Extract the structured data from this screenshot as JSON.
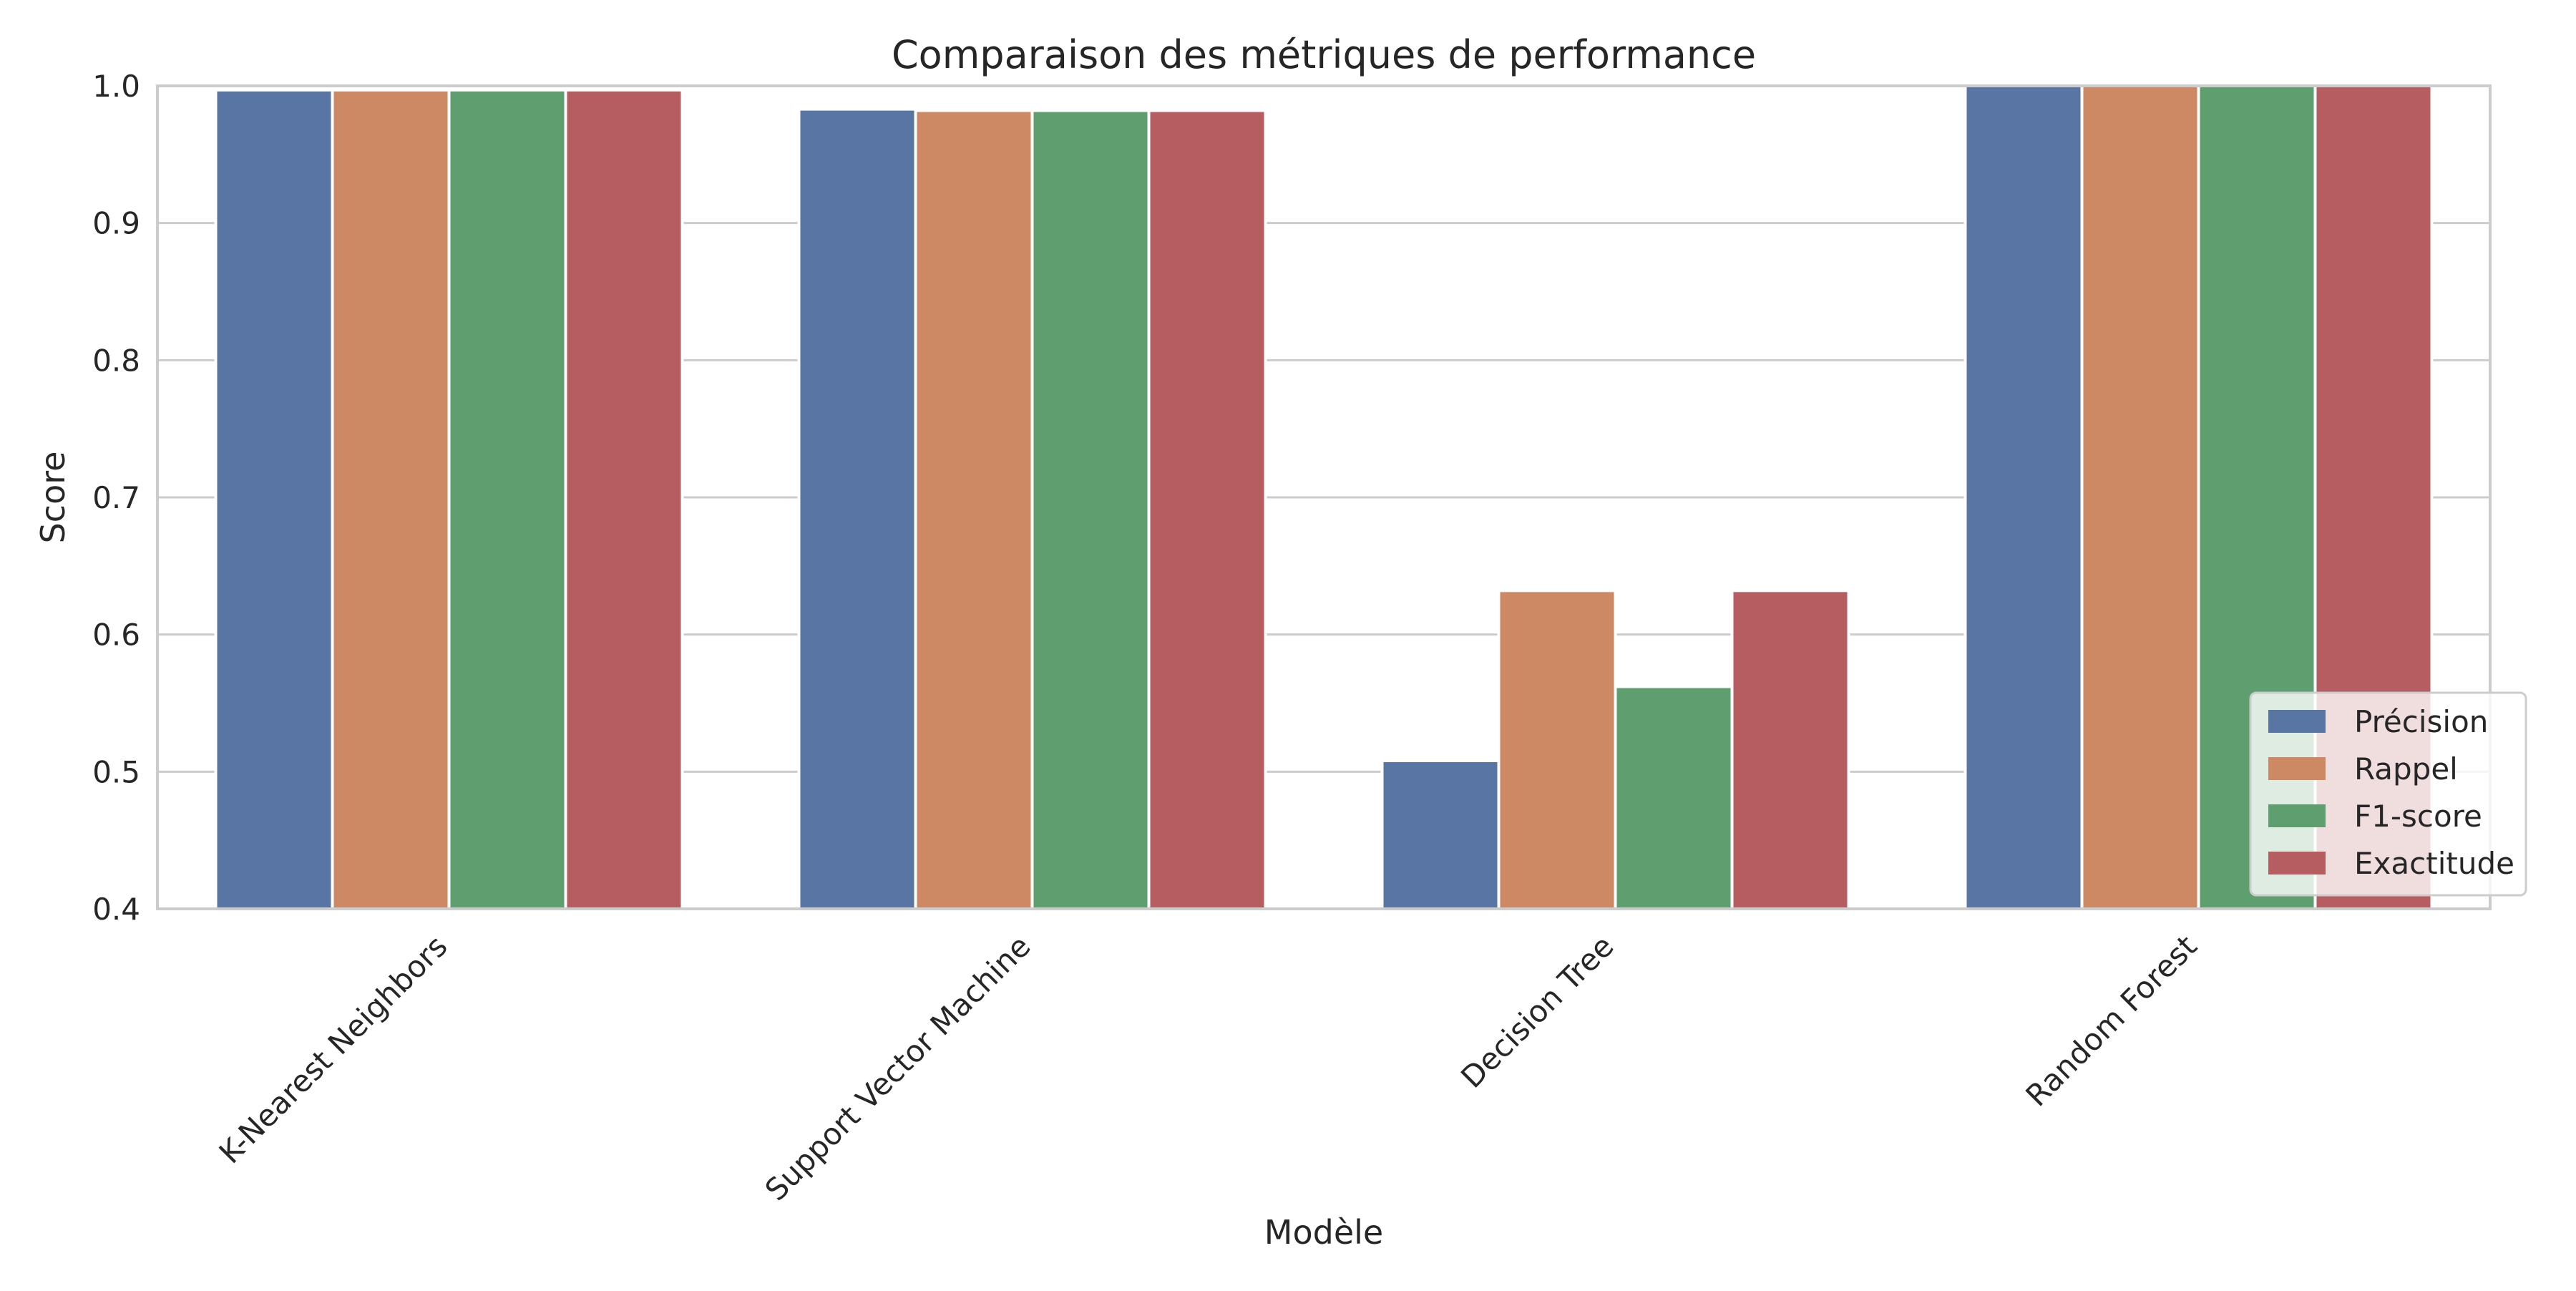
{
  "chart_data": {
    "type": "bar",
    "title": "Comparaison des métriques de performance",
    "xlabel": "Modèle",
    "ylabel": "Score",
    "ylim": [
      0.4,
      1.0
    ],
    "yticks": [
      0.4,
      0.5,
      0.6,
      0.7,
      0.8,
      0.9,
      1.0
    ],
    "grid": true,
    "legend_position": "lower-right",
    "categories": [
      "K-Nearest Neighbors",
      "Support Vector Machine",
      "Decision Tree",
      "Random Forest"
    ],
    "series": [
      {
        "name": "Précision",
        "color": "#5875a4",
        "values": [
          0.997,
          0.983,
          0.508,
          1.0
        ]
      },
      {
        "name": "Rappel",
        "color": "#cc8963",
        "values": [
          0.997,
          0.982,
          0.632,
          1.0
        ]
      },
      {
        "name": "F1-score",
        "color": "#5f9e6e",
        "values": [
          0.997,
          0.982,
          0.562,
          1.0
        ]
      },
      {
        "name": "Exactitude",
        "color": "#b55d60",
        "values": [
          0.997,
          0.982,
          0.632,
          1.0
        ]
      }
    ]
  }
}
